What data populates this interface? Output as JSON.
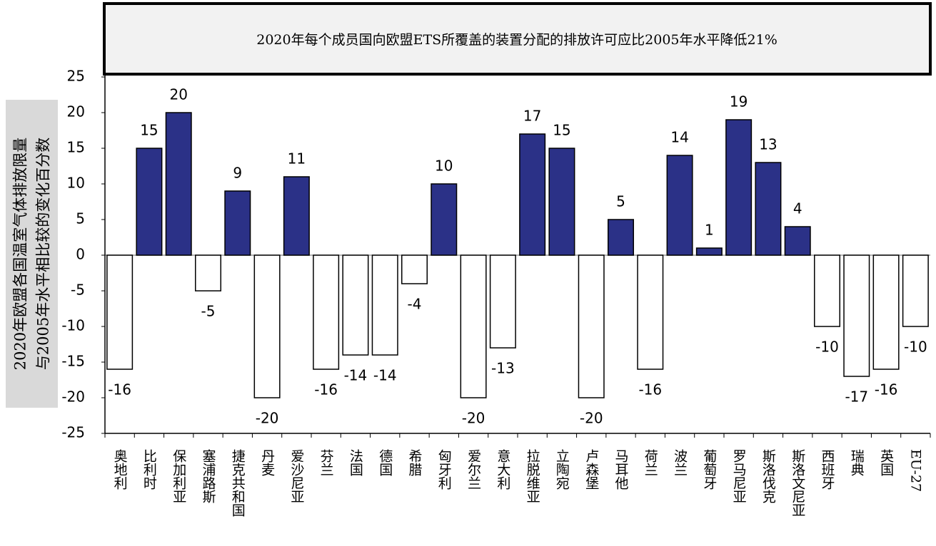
{
  "chart_data": {
    "type": "bar",
    "title": "2020年每个成员国向欧盟ETS所覆盖的装置分配的排放许可应比2005年水平降低21%",
    "y_label": [
      "2020年欧盟各国温室气体排放限量",
      "与2005年水平相比较的变化百分数"
    ],
    "categories": [
      "奥地利",
      "比利时",
      "保加利亚",
      "塞浦路斯",
      "捷克共和国",
      "丹麦",
      "爱沙尼亚",
      "芬兰",
      "法国",
      "德国",
      "希腊",
      "匈牙利",
      "爱尔兰",
      "意大利",
      "拉脱维亚",
      "立陶宛",
      "卢森堡",
      "马耳他",
      "荷兰",
      "波兰",
      "葡萄牙",
      "罗马尼亚",
      "斯洛伐克",
      "斯洛文尼亚",
      "西班牙",
      "瑞典",
      "英国",
      "EU-27"
    ],
    "values": [
      -16,
      15,
      20,
      -5,
      9,
      -20,
      11,
      -16,
      -14,
      -14,
      -4,
      10,
      -20,
      -13,
      17,
      15,
      -20,
      5,
      -16,
      14,
      1,
      19,
      13,
      4,
      -10,
      -17,
      -16,
      -10
    ],
    "color_positive": "#2b3187",
    "color_negative": "#ffffff",
    "ylim": [
      -25,
      25
    ],
    "yticks": [
      -25,
      -20,
      -15,
      -10,
      -5,
      0,
      5,
      10,
      15,
      20,
      25
    ]
  }
}
